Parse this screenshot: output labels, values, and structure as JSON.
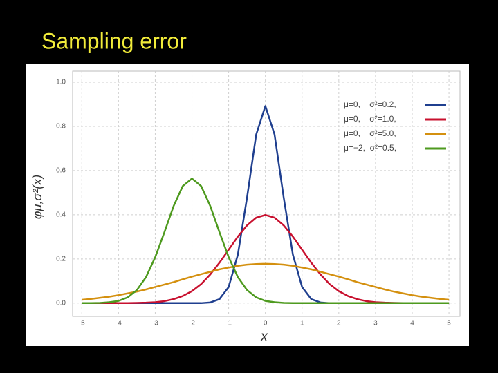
{
  "chart_data": {
    "type": "line",
    "title": "Sampling error",
    "xlabel": "x",
    "ylabel": "φμ,σ²(x)",
    "x": [
      -5,
      -4.75,
      -4.5,
      -4.25,
      -4,
      -3.75,
      -3.5,
      -3.25,
      -3,
      -2.75,
      -2.5,
      -2.25,
      -2,
      -1.75,
      -1.5,
      -1.25,
      -1,
      -0.75,
      -0.5,
      -0.25,
      0,
      0.25,
      0.5,
      0.75,
      1,
      1.25,
      1.5,
      1.75,
      2,
      2.25,
      2.5,
      2.75,
      3,
      3.25,
      3.5,
      3.75,
      4,
      4.25,
      4.5,
      4.75,
      5
    ],
    "series": [
      {
        "name": "μ=0,    σ²=0.2,",
        "color": "#1f3f8f",
        "values": [
          0,
          0,
          0,
          0,
          0,
          0,
          0,
          0,
          0,
          0,
          0,
          0,
          0,
          0,
          0.003,
          0.018,
          0.073,
          0.219,
          0.477,
          0.763,
          0.892,
          0.763,
          0.477,
          0.219,
          0.073,
          0.018,
          0.003,
          0,
          0,
          0,
          0,
          0,
          0,
          0,
          0,
          0,
          0,
          0,
          0,
          0,
          0
        ]
      },
      {
        "name": "μ=0,    σ²=1.0,",
        "color": "#c8102e",
        "values": [
          0,
          0,
          0,
          0,
          0,
          0,
          0.001,
          0.002,
          0.004,
          0.009,
          0.018,
          0.032,
          0.054,
          0.086,
          0.13,
          0.183,
          0.242,
          0.301,
          0.352,
          0.387,
          0.399,
          0.387,
          0.352,
          0.301,
          0.242,
          0.183,
          0.13,
          0.086,
          0.054,
          0.032,
          0.018,
          0.009,
          0.004,
          0.002,
          0.001,
          0,
          0,
          0,
          0,
          0,
          0
        ]
      },
      {
        "name": "μ=0,    σ²=5.0,",
        "color": "#d4900f",
        "values": [
          0.015,
          0.019,
          0.024,
          0.029,
          0.036,
          0.044,
          0.052,
          0.062,
          0.073,
          0.084,
          0.095,
          0.108,
          0.12,
          0.131,
          0.142,
          0.153,
          0.161,
          0.169,
          0.174,
          0.177,
          0.178,
          0.177,
          0.174,
          0.169,
          0.161,
          0.153,
          0.142,
          0.131,
          0.12,
          0.108,
          0.095,
          0.084,
          0.073,
          0.062,
          0.052,
          0.044,
          0.036,
          0.029,
          0.024,
          0.019,
          0.015
        ]
      },
      {
        "name": "μ=−2,  σ²=0.5,",
        "color": "#4e9a1f",
        "values": [
          0,
          0,
          0.001,
          0.004,
          0.01,
          0.026,
          0.059,
          0.118,
          0.208,
          0.321,
          0.439,
          0.53,
          0.564,
          0.53,
          0.439,
          0.321,
          0.208,
          0.118,
          0.059,
          0.026,
          0.01,
          0.004,
          0.001,
          0,
          0,
          0,
          0,
          0,
          0,
          0,
          0,
          0,
          0,
          0,
          0,
          0,
          0,
          0,
          0,
          0,
          0
        ]
      }
    ],
    "xlim": [
      -5.25,
      5.3
    ],
    "ylim": [
      -0.06,
      1.05
    ],
    "xticks": [
      -5,
      -4,
      -3,
      -2,
      -1,
      0,
      1,
      2,
      3,
      4,
      5
    ],
    "yticks": [
      {
        "value": 0,
        "label": "0.0"
      },
      {
        "value": 0.2,
        "label": "0.2"
      },
      {
        "value": 0.4,
        "label": "0.4"
      },
      {
        "value": 0.6,
        "label": "0.6"
      },
      {
        "value": 0.8,
        "label": "0.8"
      },
      {
        "value": 1,
        "label": "1.0"
      }
    ],
    "grid": true,
    "legend": "upper right"
  }
}
